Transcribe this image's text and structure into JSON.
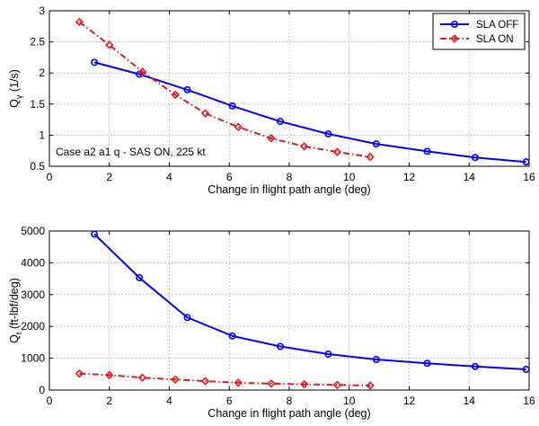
{
  "chart_data": [
    {
      "type": "line",
      "xlabel": "Change in flight path angle (deg)",
      "ylabel_main": "Q",
      "ylabel_sub": "γ",
      "ylabel_unit": " (1/s)",
      "xlim": [
        0,
        16
      ],
      "ylim": [
        0.5,
        3
      ],
      "xticks": [
        0,
        2,
        4,
        6,
        8,
        10,
        12,
        14,
        16
      ],
      "yticks": [
        0.5,
        1,
        1.5,
        2,
        2.5,
        3
      ],
      "ytick_labels": [
        "0.5",
        "1",
        "1.5",
        "2",
        "2.5",
        "3"
      ],
      "grid": true,
      "legend": "top-right",
      "annotation": "Case a2 a1 q - SAS ON, 225 kt",
      "series": [
        {
          "name": "SLA OFF",
          "color": "#0000ff",
          "marker": "circle",
          "linestyle": "solid",
          "x": [
            1.5,
            3.0,
            4.6,
            6.1,
            7.7,
            9.3,
            10.9,
            12.6,
            14.2,
            15.9
          ],
          "y": [
            2.17,
            1.98,
            1.73,
            1.47,
            1.22,
            1.02,
            0.86,
            0.74,
            0.64,
            0.57
          ]
        },
        {
          "name": "SLA ON",
          "color": "#e31a1c",
          "marker": "diamond",
          "linestyle": "dashdot",
          "x": [
            1.0,
            2.0,
            3.1,
            4.2,
            5.2,
            6.3,
            7.4,
            8.5,
            9.6,
            10.7
          ],
          "y": [
            2.82,
            2.45,
            2.02,
            1.65,
            1.35,
            1.13,
            0.95,
            0.82,
            0.73,
            0.65
          ]
        }
      ]
    },
    {
      "type": "line",
      "xlabel": "Change in flight path angle (deg)",
      "ylabel_main": "Q",
      "ylabel_sub": "t",
      "ylabel_unit": " (ft-lbf/deg)",
      "xlim": [
        0,
        16
      ],
      "ylim": [
        0,
        5000
      ],
      "xticks": [
        0,
        2,
        4,
        6,
        8,
        10,
        12,
        14,
        16
      ],
      "yticks": [
        0,
        1000,
        2000,
        3000,
        4000,
        5000
      ],
      "ytick_labels": [
        "0",
        "1000",
        "2000",
        "3000",
        "4000",
        "5000"
      ],
      "grid": true,
      "series": [
        {
          "name": "SLA OFF",
          "color": "#0000ff",
          "marker": "circle",
          "linestyle": "solid",
          "x": [
            1.5,
            3.0,
            4.6,
            6.1,
            7.7,
            9.3,
            10.9,
            12.6,
            14.2,
            15.9
          ],
          "y": [
            4900,
            3530,
            2280,
            1700,
            1370,
            1130,
            960,
            840,
            740,
            650
          ]
        },
        {
          "name": "SLA ON",
          "color": "#e31a1c",
          "marker": "diamond",
          "linestyle": "dashdot",
          "x": [
            1.0,
            2.0,
            3.1,
            4.2,
            5.2,
            6.3,
            7.4,
            8.5,
            9.6,
            10.7
          ],
          "y": [
            520,
            470,
            390,
            330,
            280,
            230,
            200,
            180,
            160,
            140
          ]
        }
      ]
    }
  ]
}
